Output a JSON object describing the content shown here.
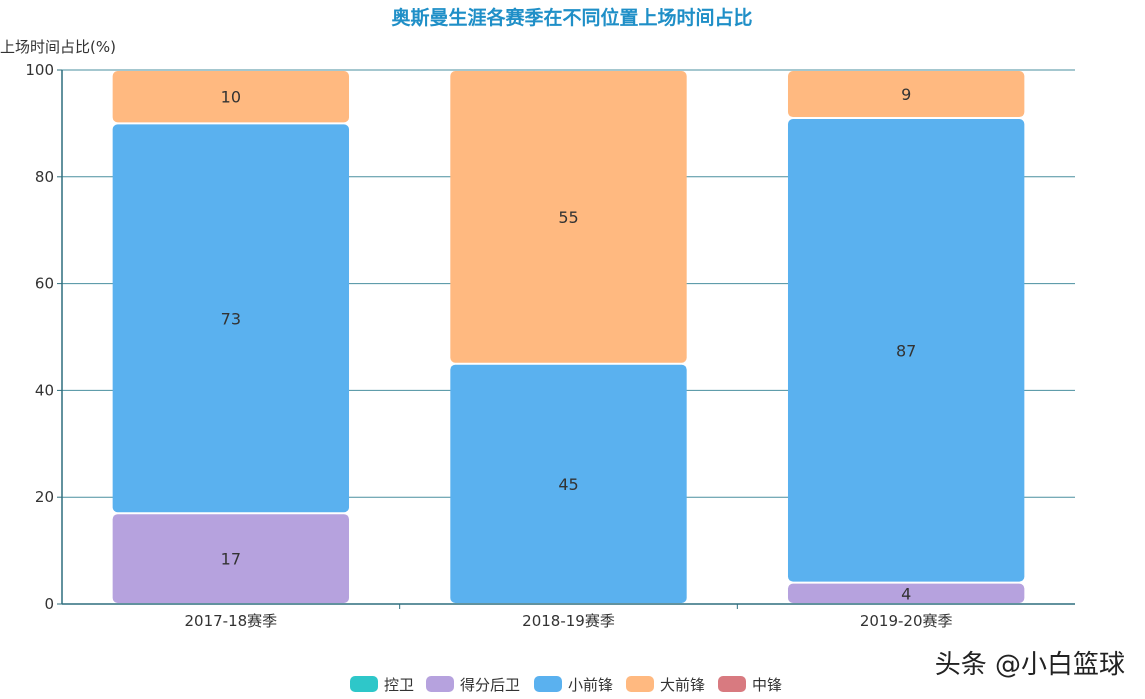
{
  "chart_data": {
    "type": "bar",
    "stacked": true,
    "title": "奥斯曼生涯各赛季在不同位置上场时间占比",
    "ylabel": "上场时间占比(%)",
    "xlabel": "",
    "ylim": [
      0,
      100
    ],
    "yticks": [
      "0",
      "20",
      "40",
      "60",
      "80",
      "100"
    ],
    "categories": [
      "2017-18赛季",
      "2018-19赛季",
      "2019-20赛季"
    ],
    "series": [
      {
        "name": "控卫",
        "color": "#2ec7c9",
        "values": [
          0,
          0,
          0
        ]
      },
      {
        "name": "得分后卫",
        "color": "#b6a2de",
        "values": [
          17,
          0,
          4
        ]
      },
      {
        "name": "小前锋",
        "color": "#5ab1ef",
        "values": [
          73,
          45,
          87
        ]
      },
      {
        "name": "大前锋",
        "color": "#ffb980",
        "values": [
          10,
          55,
          9
        ]
      },
      {
        "name": "中锋",
        "color": "#d87a80",
        "values": [
          0,
          0,
          0
        ]
      }
    ],
    "grid": true,
    "legend_position": "bottom"
  },
  "colors": {
    "title": "#1f8fc7",
    "axis": "#2f6f7e",
    "grid": "#4a8f9f",
    "text": "#333333"
  },
  "watermark": "头条 @小白篮球"
}
